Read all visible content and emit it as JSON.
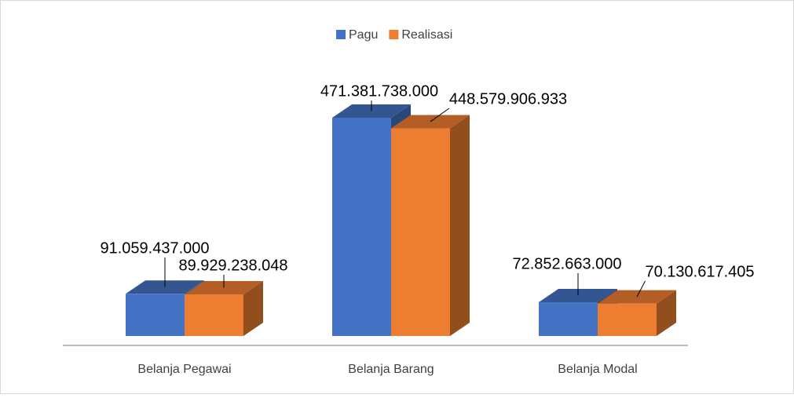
{
  "chart_data": {
    "type": "bar3d",
    "categories": [
      "Belanja Pegawai",
      "Belanja Barang",
      "Belanja Modal"
    ],
    "series": [
      {
        "name": "Pagu",
        "color": "#4472c4",
        "values": [
          91059437000,
          471381738000,
          72852663000
        ],
        "value_labels": [
          "91.059.437.000",
          "471.381.738.000",
          "72.852.663.000"
        ]
      },
      {
        "name": "Realisasi",
        "color": "#ed7d31",
        "values": [
          89929238048,
          448579906933,
          70130617405
        ],
        "value_labels": [
          "89.929.238.048",
          "448.579.906.933",
          "70.130.617.405"
        ]
      }
    ],
    "legend": "top"
  }
}
